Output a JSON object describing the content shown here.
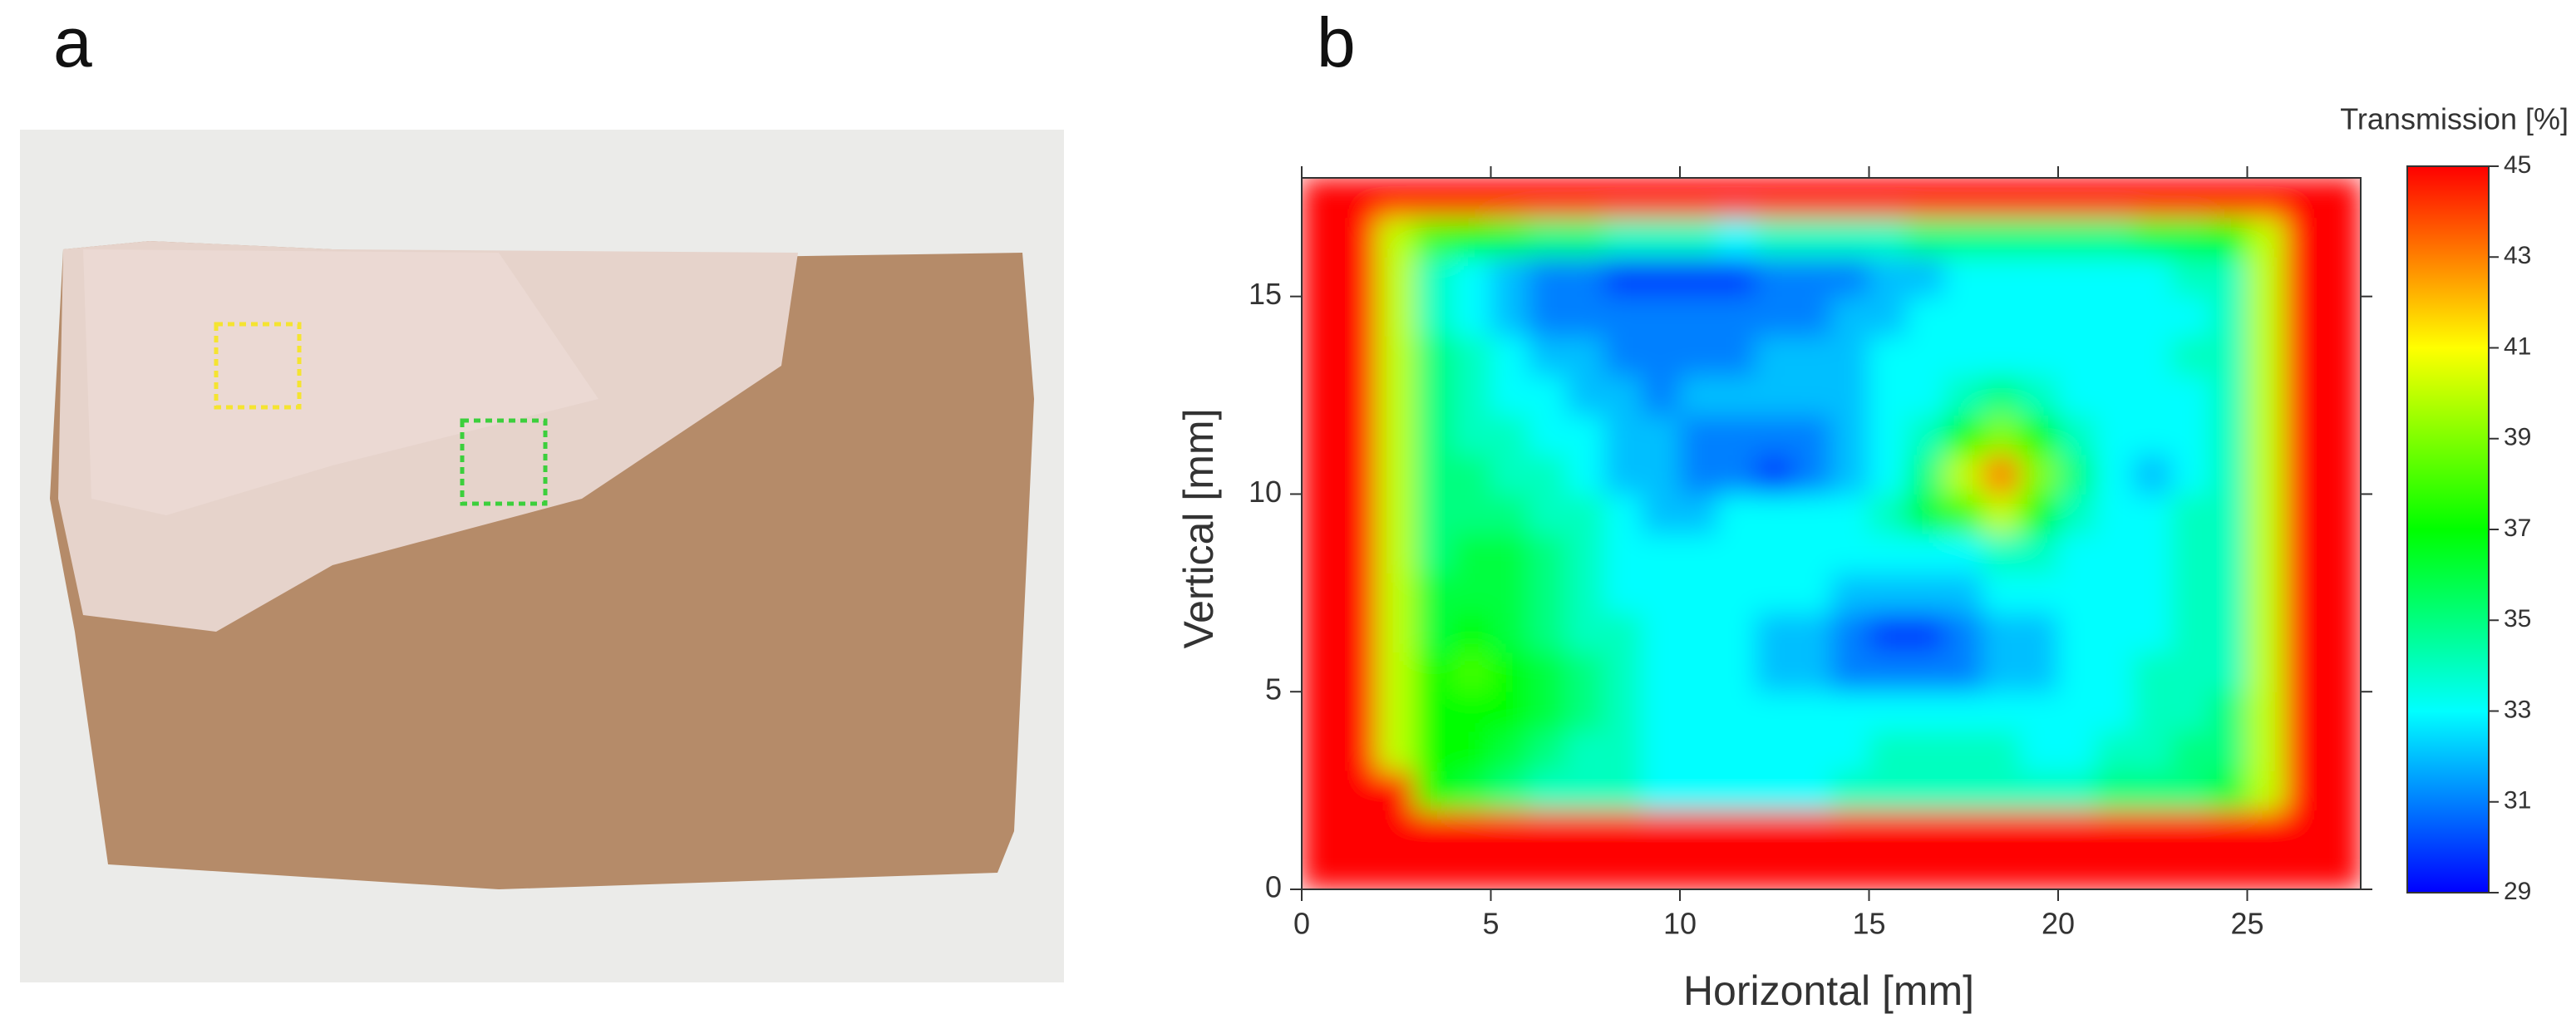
{
  "panel_labels": [
    "a",
    "b"
  ],
  "chart_data": {
    "type": "heatmap",
    "xlabel": "Horizontal [mm]",
    "ylabel": "Vertical [mm]",
    "colorbar_title": "Transmission [%]",
    "xlim": [
      0,
      28
    ],
    "ylim": [
      0,
      18
    ],
    "xticks": [
      0,
      5,
      10,
      15,
      20,
      25
    ],
    "yticks": [
      0,
      5,
      10,
      15
    ],
    "zlim": [
      29,
      45
    ],
    "zticks": [
      29,
      31,
      33,
      35,
      37,
      39,
      41,
      43,
      45
    ],
    "colors": [
      "#0000ff",
      "#00ffff",
      "#00ff00",
      "#ffff00",
      "#ff0000"
    ],
    "x": [
      0.5,
      1.5,
      2.5,
      3.5,
      4.5,
      5.5,
      6.5,
      7.5,
      8.5,
      9.5,
      10.5,
      11.5,
      12.5,
      13.5,
      14.5,
      15.5,
      16.5,
      17.5,
      18.5,
      19.5,
      20.5,
      21.5,
      22.5,
      23.5,
      24.5,
      25.5,
      26.5,
      27.5
    ],
    "y": [
      0.5,
      1.5,
      2.5,
      3.5,
      4.5,
      5.5,
      6.5,
      7.5,
      8.5,
      9.5,
      10.5,
      11.5,
      12.5,
      13.5,
      14.5,
      15.5,
      16.5,
      17.5
    ],
    "z": [
      [
        45,
        45,
        45,
        45,
        45,
        45,
        45,
        45,
        45,
        45,
        45,
        45,
        45,
        45,
        45,
        45,
        45,
        45,
        45,
        45,
        45,
        45,
        45,
        45,
        45,
        45,
        45,
        45
      ],
      [
        45,
        45,
        45,
        45,
        45,
        45,
        45,
        45,
        45,
        45,
        45,
        45,
        45,
        45,
        45,
        45,
        45,
        45,
        45,
        45,
        45,
        45,
        45,
        45,
        45,
        45,
        45,
        45
      ],
      [
        45,
        45,
        45,
        37,
        36,
        35,
        34,
        34,
        34,
        33,
        33,
        33,
        33,
        33,
        34,
        34,
        34,
        34,
        34,
        34,
        34,
        35,
        35,
        35,
        36,
        40,
        45,
        45
      ],
      [
        45,
        45,
        40,
        37,
        37,
        36,
        35,
        34,
        34,
        33,
        33,
        33,
        33,
        33,
        33,
        34,
        34,
        34,
        34,
        33,
        33,
        34,
        34,
        35,
        35,
        40,
        45,
        45
      ],
      [
        45,
        45,
        40,
        37,
        37,
        37,
        36,
        35,
        34,
        33,
        33,
        33,
        33,
        33,
        33,
        33,
        33,
        33,
        33,
        33,
        33,
        33,
        34,
        34,
        35,
        40,
        45,
        45
      ],
      [
        45,
        45,
        40,
        37,
        38,
        37,
        36,
        35,
        34,
        33,
        33,
        33,
        32,
        32,
        31,
        31,
        31,
        31,
        32,
        32,
        33,
        33,
        34,
        34,
        34,
        40,
        45,
        45
      ],
      [
        45,
        45,
        40,
        36,
        37,
        36,
        35,
        34,
        34,
        33,
        33,
        33,
        32,
        32,
        31,
        30,
        30,
        31,
        32,
        32,
        33,
        33,
        33,
        34,
        34,
        40,
        45,
        45
      ],
      [
        45,
        45,
        40,
        36,
        36,
        36,
        35,
        34,
        33,
        33,
        33,
        33,
        33,
        33,
        32,
        32,
        32,
        32,
        33,
        33,
        33,
        33,
        33,
        34,
        34,
        40,
        45,
        45
      ],
      [
        45,
        45,
        40,
        35,
        36,
        36,
        35,
        34,
        33,
        33,
        33,
        33,
        33,
        33,
        33,
        33,
        33,
        33,
        34,
        34,
        33,
        33,
        33,
        34,
        34,
        40,
        45,
        45
      ],
      [
        45,
        45,
        40,
        35,
        35,
        35,
        34,
        34,
        33,
        32,
        32,
        33,
        33,
        33,
        33,
        34,
        36,
        38,
        40,
        37,
        34,
        33,
        33,
        34,
        34,
        40,
        45,
        45
      ],
      [
        45,
        45,
        40,
        35,
        35,
        34,
        34,
        33,
        32,
        32,
        31,
        31,
        30,
        31,
        32,
        33,
        35,
        40,
        43,
        39,
        35,
        33,
        32,
        33,
        34,
        40,
        45,
        45
      ],
      [
        45,
        45,
        40,
        35,
        34,
        34,
        33,
        33,
        32,
        32,
        31,
        31,
        31,
        31,
        32,
        33,
        34,
        37,
        39,
        37,
        34,
        33,
        33,
        33,
        34,
        40,
        45,
        45
      ],
      [
        45,
        45,
        40,
        35,
        34,
        33,
        33,
        32,
        32,
        31,
        32,
        32,
        32,
        32,
        32,
        33,
        33,
        34,
        35,
        34,
        33,
        33,
        33,
        33,
        34,
        40,
        45,
        45
      ],
      [
        45,
        45,
        40,
        35,
        34,
        33,
        32,
        32,
        31,
        31,
        31,
        31,
        32,
        32,
        32,
        33,
        33,
        33,
        33,
        33,
        33,
        33,
        33,
        34,
        34,
        40,
        45,
        45
      ],
      [
        45,
        45,
        40,
        34,
        33,
        32,
        31,
        31,
        31,
        31,
        31,
        31,
        31,
        31,
        32,
        32,
        33,
        33,
        33,
        33,
        33,
        33,
        33,
        33,
        34,
        40,
        45,
        45
      ],
      [
        45,
        45,
        40,
        34,
        33,
        32,
        31,
        31,
        30,
        30,
        30,
        30,
        31,
        31,
        31,
        32,
        32,
        33,
        33,
        33,
        33,
        33,
        33,
        34,
        34,
        40,
        45,
        45
      ],
      [
        45,
        45,
        40,
        38,
        37,
        36,
        35,
        35,
        34,
        34,
        34,
        33,
        34,
        34,
        34,
        34,
        35,
        35,
        35,
        35,
        35,
        35,
        36,
        36,
        37,
        40,
        45,
        45
      ],
      [
        45,
        45,
        45,
        45,
        45,
        45,
        45,
        45,
        45,
        45,
        45,
        45,
        45,
        45,
        45,
        45,
        45,
        45,
        45,
        45,
        45,
        45,
        45,
        45,
        45,
        45,
        45,
        45
      ]
    ]
  }
}
